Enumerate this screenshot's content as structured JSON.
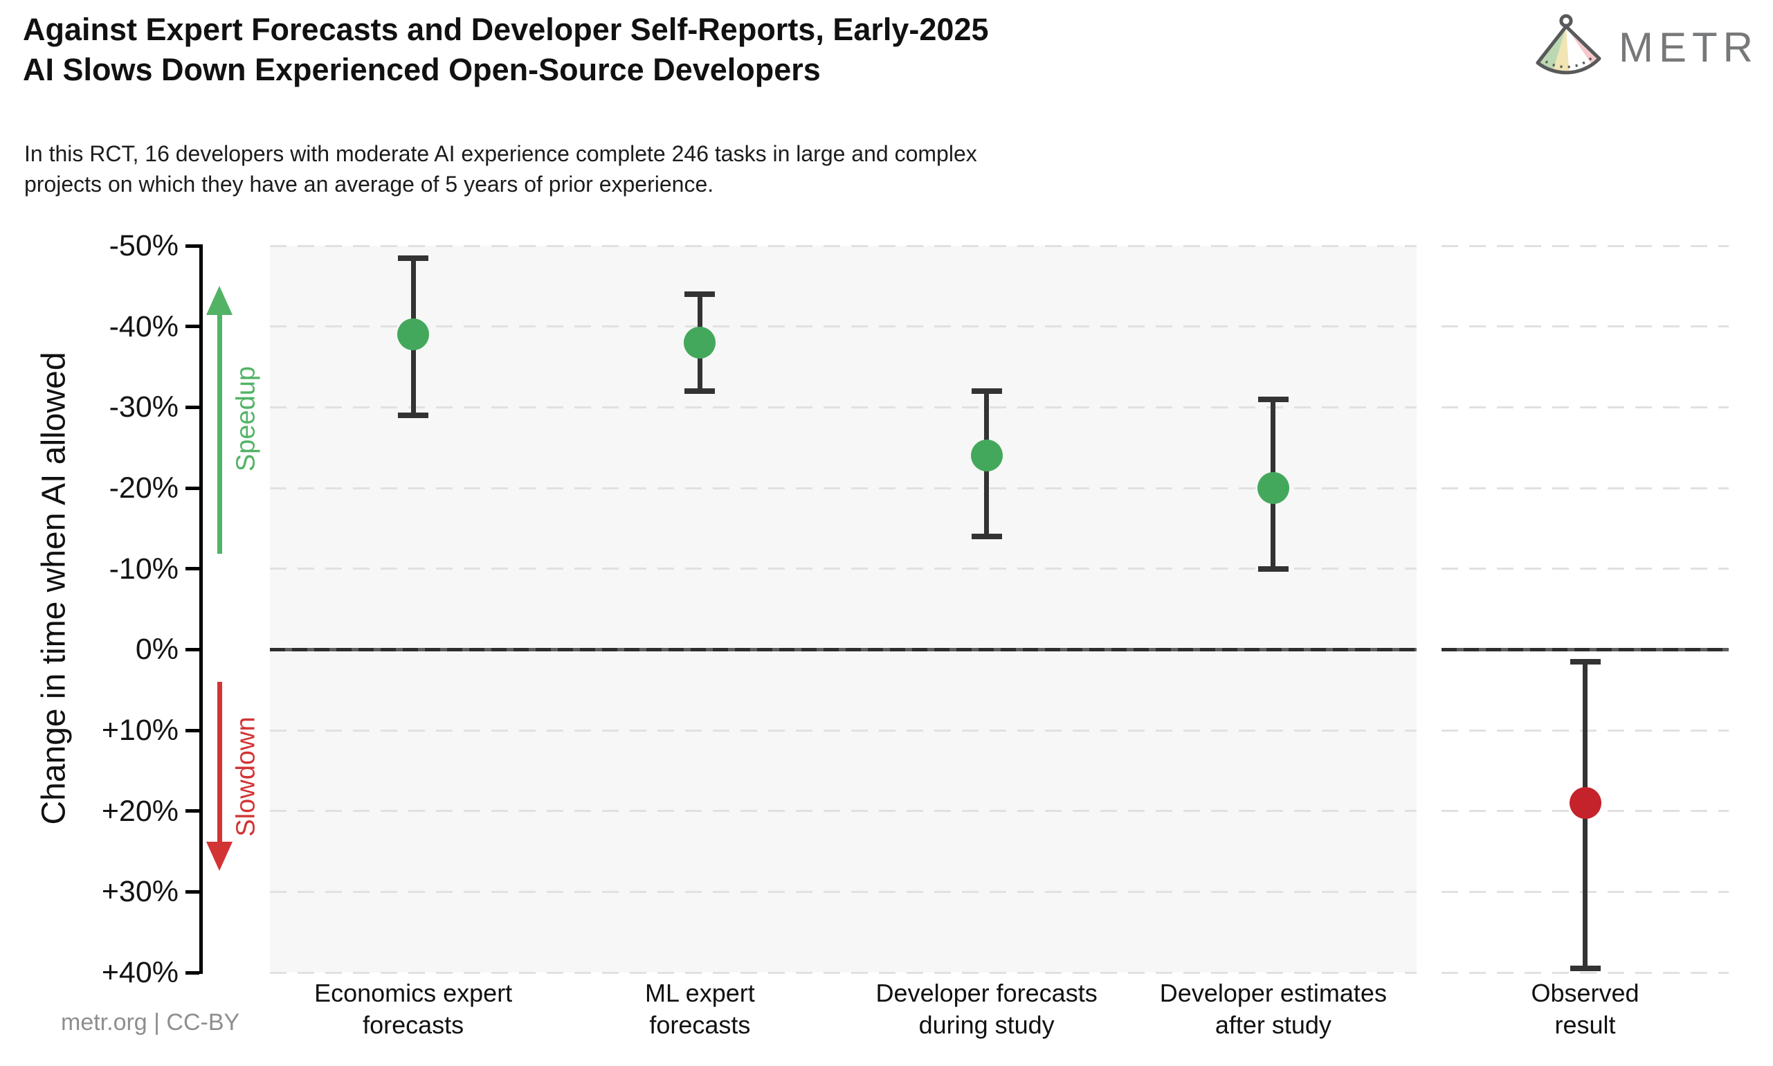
{
  "header": {
    "title": "Against Expert Forecasts and Developer Self-Reports, Early-2025\nAI Slows Down Experienced Open-Source Developers",
    "subtitle": "In this RCT, 16 developers with moderate AI experience complete 246 tasks in large and complex\nprojects on which they have an average of 5 years of prior experience.",
    "logo_text": "METR"
  },
  "footer": {
    "credit": "metr.org  |  CC-BY"
  },
  "annotations": {
    "speedup_label": "Speedup",
    "slowdown_label": "Slowdown"
  },
  "colors": {
    "forecast_green": "#44a85c",
    "observed_red": "#c4232b",
    "arrow_green": "#52b365",
    "arrow_red": "#d23434",
    "error_bar": "#333333",
    "panel_bg": "#f7f7f7",
    "gridline": "#e1e1e1",
    "zero_line": "#2d2d2d",
    "credit_gray": "#8e8e8e",
    "logo_gray": "#77787a"
  },
  "chart_data": {
    "type": "scatter",
    "title": "Against Expert Forecasts and Developer Self-Reports, Early-2025 AI Slows Down Experienced Open-Source Developers",
    "xlabel": "",
    "ylabel": "Change in time when AI allowed",
    "ylim": [
      -50,
      40
    ],
    "grid": true,
    "zero_line": 0,
    "ytick_values": [
      -50,
      -40,
      -30,
      -20,
      -10,
      0,
      10,
      20,
      30,
      40
    ],
    "ytick_labels": [
      "-50%",
      "-40%",
      "-30%",
      "-20%",
      "-10%",
      "0%",
      "+10%",
      "+20%",
      "+30%",
      "+40%"
    ],
    "series": [
      {
        "category": "Economics expert\nforecasts",
        "value": -39,
        "ci_low": -48.5,
        "ci_high": -29,
        "color": "#44a85c",
        "panel": "main"
      },
      {
        "category": "ML expert\nforecasts",
        "value": -38,
        "ci_low": -44,
        "ci_high": -32,
        "color": "#44a85c",
        "panel": "main"
      },
      {
        "category": "Developer forecasts\nduring study",
        "value": -24,
        "ci_low": -32,
        "ci_high": -14,
        "color": "#44a85c",
        "panel": "main"
      },
      {
        "category": "Developer estimates\nafter study",
        "value": -20,
        "ci_low": -31,
        "ci_high": -10,
        "color": "#44a85c",
        "panel": "main"
      },
      {
        "category": "Observed\nresult",
        "value": 19,
        "ci_low": 1.5,
        "ci_high": 39.5,
        "color": "#c4232b",
        "panel": "observed"
      }
    ]
  }
}
